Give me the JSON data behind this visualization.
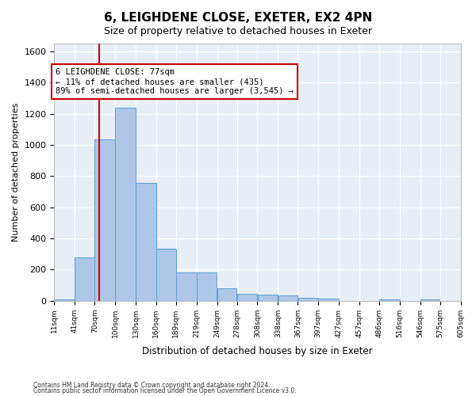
{
  "title": "6, LEIGHDENE CLOSE, EXETER, EX2 4PN",
  "subtitle": "Size of property relative to detached houses in Exeter",
  "xlabel": "Distribution of detached houses by size in Exeter",
  "ylabel": "Number of detached properties",
  "bar_color": "#aec6e8",
  "bar_edge_color": "#5a9fd4",
  "background_color": "#e8eef5",
  "grid_color": "#ffffff",
  "vline_x": 77,
  "vline_color": "#cc0000",
  "annotation_text": "6 LEIGHDENE CLOSE: 77sqm\n← 11% of detached houses are smaller (435)\n89% of semi-detached houses are larger (3,545) →",
  "annotation_box_color": "#cc0000",
  "footer1": "Contains HM Land Registry data © Crown copyright and database right 2024.",
  "footer2": "Contains public sector information licensed under the Open Government Licence v3.0.",
  "bin_edges": [
    11,
    41,
    70,
    100,
    130,
    160,
    189,
    219,
    249,
    278,
    308,
    338,
    367,
    397,
    427,
    457,
    486,
    516,
    546,
    575,
    605
  ],
  "bar_heights": [
    10,
    280,
    1035,
    1240,
    755,
    335,
    180,
    180,
    80,
    45,
    40,
    35,
    20,
    12,
    0,
    0,
    10,
    0,
    10,
    0
  ],
  "ylim": [
    0,
    1650
  ],
  "yticks": [
    0,
    200,
    400,
    600,
    800,
    1000,
    1200,
    1400,
    1600
  ]
}
